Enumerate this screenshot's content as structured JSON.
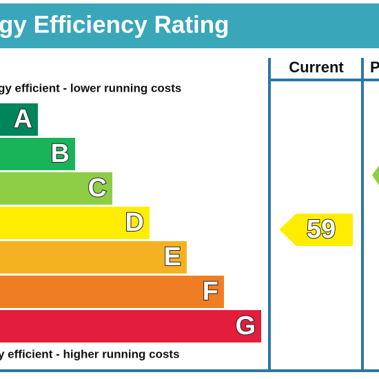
{
  "header": {
    "title": "gy Efficiency Rating"
  },
  "top_note": "gy efficient - lower running costs",
  "bottom_note": "y efficient - higher running costs",
  "columns": [
    "Current",
    "P"
  ],
  "bands": [
    {
      "letter": "A",
      "color": "#00855a"
    },
    {
      "letter": "B",
      "color": "#19b459"
    },
    {
      "letter": "C",
      "color": "#8dce46"
    },
    {
      "letter": "D",
      "color": "#ffed00"
    },
    {
      "letter": "E",
      "color": "#f4b223"
    },
    {
      "letter": "F",
      "color": "#ef7d23"
    },
    {
      "letter": "G",
      "color": "#e31d3c"
    }
  ],
  "current": {
    "rating": "59",
    "color": "#ffed00"
  },
  "potential": {
    "color": "#8dce46"
  }
}
